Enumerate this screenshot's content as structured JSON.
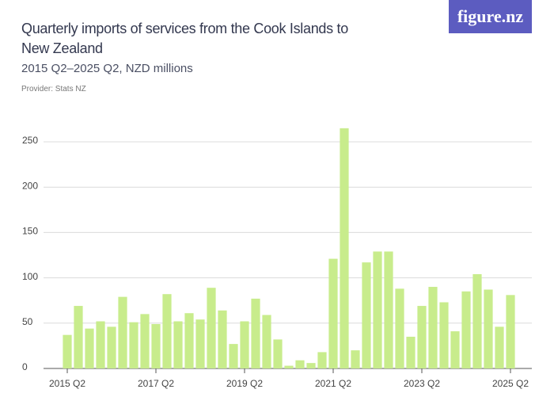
{
  "logo": "figure.nz",
  "chart_data": {
    "type": "bar",
    "title": "Quarterly imports of services from the Cook Islands to New Zealand",
    "subtitle": "2015 Q2–2025 Q2, NZD millions",
    "provider": "Provider: Stats NZ",
    "categories": [
      "2015 Q2",
      null,
      null,
      null,
      null,
      null,
      null,
      null,
      "2017 Q2",
      null,
      null,
      null,
      null,
      null,
      null,
      null,
      "2019 Q2",
      null,
      null,
      null,
      null,
      null,
      null,
      null,
      "2021 Q2",
      null,
      null,
      null,
      null,
      null,
      null,
      null,
      "2023 Q2",
      null,
      null,
      null,
      null,
      null,
      null,
      null,
      "2025 Q2"
    ],
    "values": [
      37,
      69,
      44,
      52,
      46,
      79,
      51,
      60,
      49,
      82,
      52,
      61,
      54,
      89,
      64,
      27,
      52,
      77,
      59,
      32,
      3,
      9,
      6,
      18,
      121,
      265,
      20,
      117,
      129,
      129,
      88,
      35,
      69,
      90,
      73,
      41,
      85,
      104,
      87,
      46,
      81
    ],
    "color": "#c8ec8c",
    "ylim": [
      0,
      265
    ],
    "yticks": [
      0,
      50,
      100,
      150,
      200,
      250
    ],
    "grid": true
  }
}
